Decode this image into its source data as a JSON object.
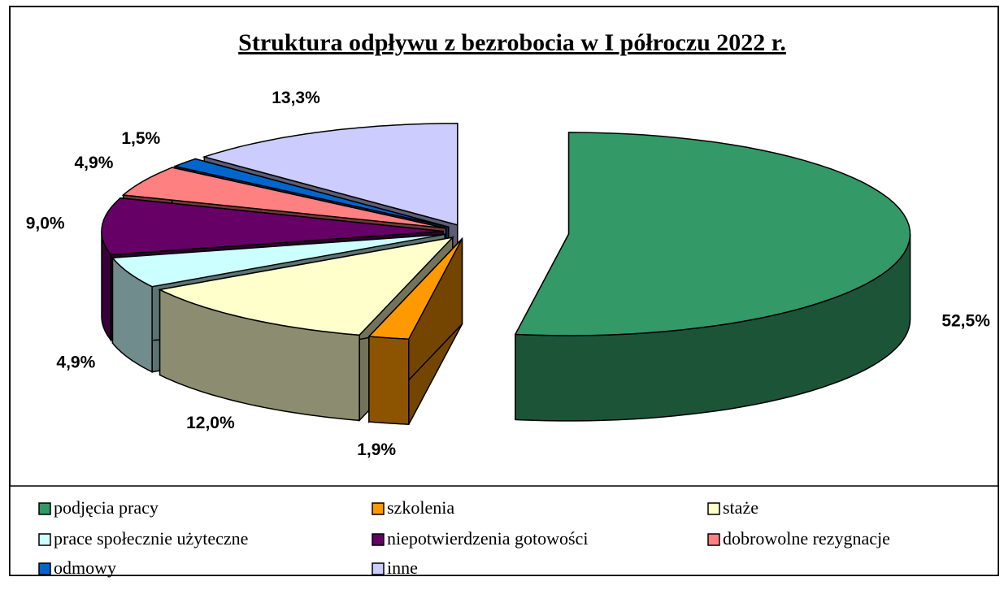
{
  "chart_data": {
    "type": "pie3d",
    "title": "Struktura odpływu z bezrobocia w I półroczu 2022 r.",
    "categories": [
      "podjęcia pracy",
      "szkolenia",
      "staże",
      "prace społecznie użyteczne",
      "niepotwierdzenia gotowości",
      "dobrowolne rezygnacje",
      "odmowy",
      "inne"
    ],
    "values": [
      52.5,
      1.9,
      12.0,
      4.9,
      9.0,
      4.9,
      1.5,
      13.3
    ],
    "value_labels": [
      "52,5%",
      "1,9%",
      "12,0%",
      "4,9%",
      "9,0%",
      "4,9%",
      "1,5%",
      "13,3%"
    ],
    "colors": [
      "#339966",
      "#FF9900",
      "#FFFFCC",
      "#CCFFFF",
      "#660066",
      "#FF8080",
      "#0066CC",
      "#CCCCFF"
    ],
    "legend": "bottom"
  }
}
